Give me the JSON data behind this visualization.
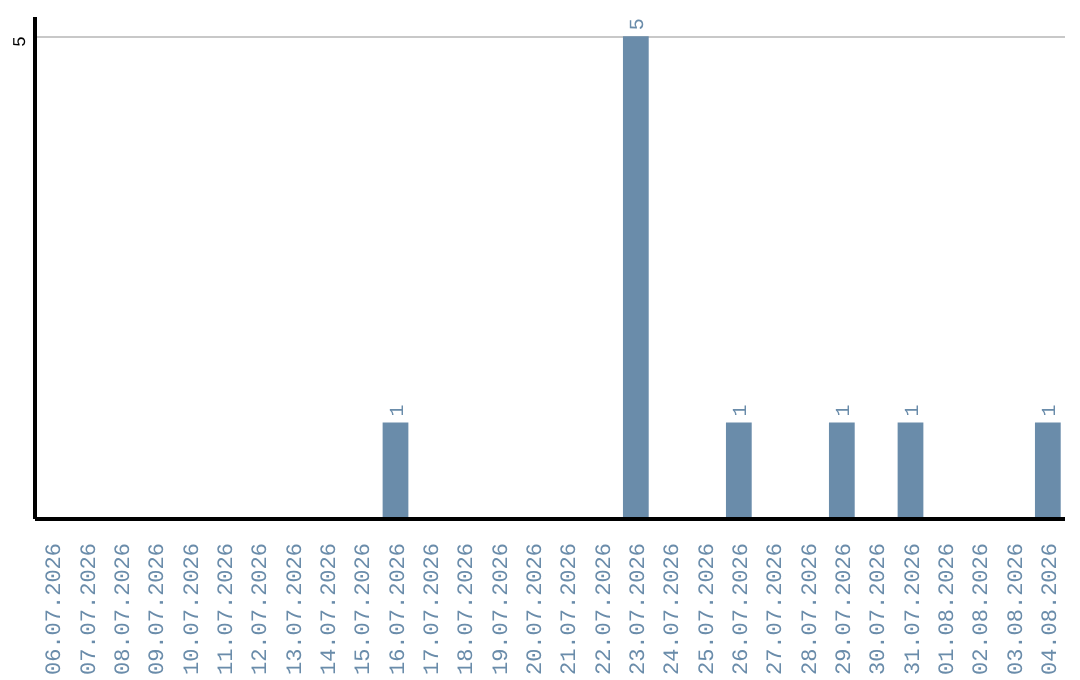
{
  "chart_data": {
    "type": "bar",
    "categories": [
      "06.07.2026",
      "07.07.2026",
      "08.07.2026",
      "09.07.2026",
      "10.07.2026",
      "11.07.2026",
      "12.07.2026",
      "13.07.2026",
      "14.07.2026",
      "15.07.2026",
      "16.07.2026",
      "17.07.2026",
      "18.07.2026",
      "19.07.2026",
      "20.07.2026",
      "21.07.2026",
      "22.07.2026",
      "23.07.2026",
      "24.07.2026",
      "25.07.2026",
      "26.07.2026",
      "27.07.2026",
      "28.07.2026",
      "29.07.2026",
      "30.07.2026",
      "31.07.2026",
      "01.08.2026",
      "02.08.2026",
      "03.08.2026",
      "04.08.2026"
    ],
    "values": [
      0,
      0,
      0,
      0,
      0,
      0,
      0,
      0,
      0,
      0,
      1,
      0,
      0,
      0,
      0,
      0,
      0,
      5,
      0,
      0,
      1,
      0,
      0,
      1,
      0,
      1,
      0,
      0,
      0,
      1
    ],
    "value_labels": [
      null,
      null,
      null,
      null,
      null,
      null,
      null,
      null,
      null,
      null,
      "1",
      null,
      null,
      null,
      null,
      null,
      null,
      "5",
      null,
      null,
      "1",
      null,
      null,
      "1",
      null,
      "1",
      null,
      null,
      null,
      "1"
    ],
    "color": "#6a8caa",
    "ylim": [
      0,
      5.2
    ],
    "yticks": [
      5
    ],
    "grid": "y"
  }
}
